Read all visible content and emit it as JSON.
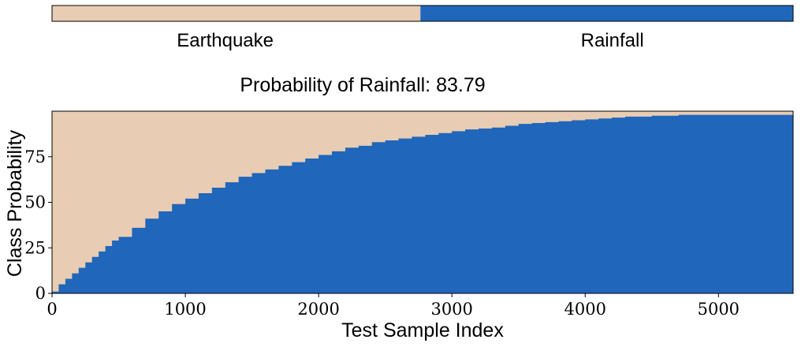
{
  "legend": {
    "items": [
      {
        "label": "Earthquake",
        "color": "#e8ccb3",
        "fraction": 0.4971
      },
      {
        "label": "Rainfall",
        "color": "#2066ba",
        "fraction": 0.5029
      }
    ]
  },
  "chart_data": {
    "type": "area",
    "title": "Probability of Rainfall: 83.79",
    "xlabel": "Test Sample Index",
    "ylabel": "Class Probability",
    "xlim": [
      0,
      5560
    ],
    "ylim": [
      0,
      100
    ],
    "xticks": [
      0,
      1000,
      2000,
      3000,
      4000,
      5000
    ],
    "yticks": [
      0,
      25,
      50,
      75
    ],
    "grid": false,
    "series": [
      {
        "name": "Rainfall",
        "color": "#2066ba",
        "x": [
          0,
          50,
          100,
          150,
          200,
          250,
          300,
          350,
          400,
          450,
          500,
          600,
          700,
          800,
          900,
          1000,
          1100,
          1200,
          1300,
          1400,
          1500,
          1600,
          1700,
          1800,
          1900,
          2000,
          2100,
          2200,
          2300,
          2400,
          2500,
          2600,
          2700,
          2800,
          2900,
          3000,
          3100,
          3200,
          3300,
          3400,
          3500,
          3600,
          3700,
          3800,
          3900,
          4000,
          4100,
          4200,
          4300,
          4400,
          4500,
          4600,
          4700,
          4800,
          4900,
          5000,
          5100,
          5200,
          5300,
          5400,
          5560
        ],
        "values": [
          1,
          5,
          8,
          11,
          14,
          17,
          20,
          23,
          26,
          29,
          31,
          36,
          41,
          45,
          49,
          52,
          55,
          58,
          61,
          64,
          66,
          68,
          70,
          72,
          74,
          76,
          78,
          80,
          81,
          83,
          84,
          85,
          86,
          87,
          88,
          89,
          90,
          90.5,
          91,
          92,
          93,
          93.5,
          94,
          94.5,
          95,
          95.5,
          96,
          96.5,
          97,
          97,
          97.5,
          97.5,
          98,
          98,
          98,
          98,
          98,
          98,
          98,
          98,
          98
        ]
      },
      {
        "name": "Earthquake",
        "color": "#e8ccb3",
        "fill": "remainder-to-100"
      }
    ]
  }
}
